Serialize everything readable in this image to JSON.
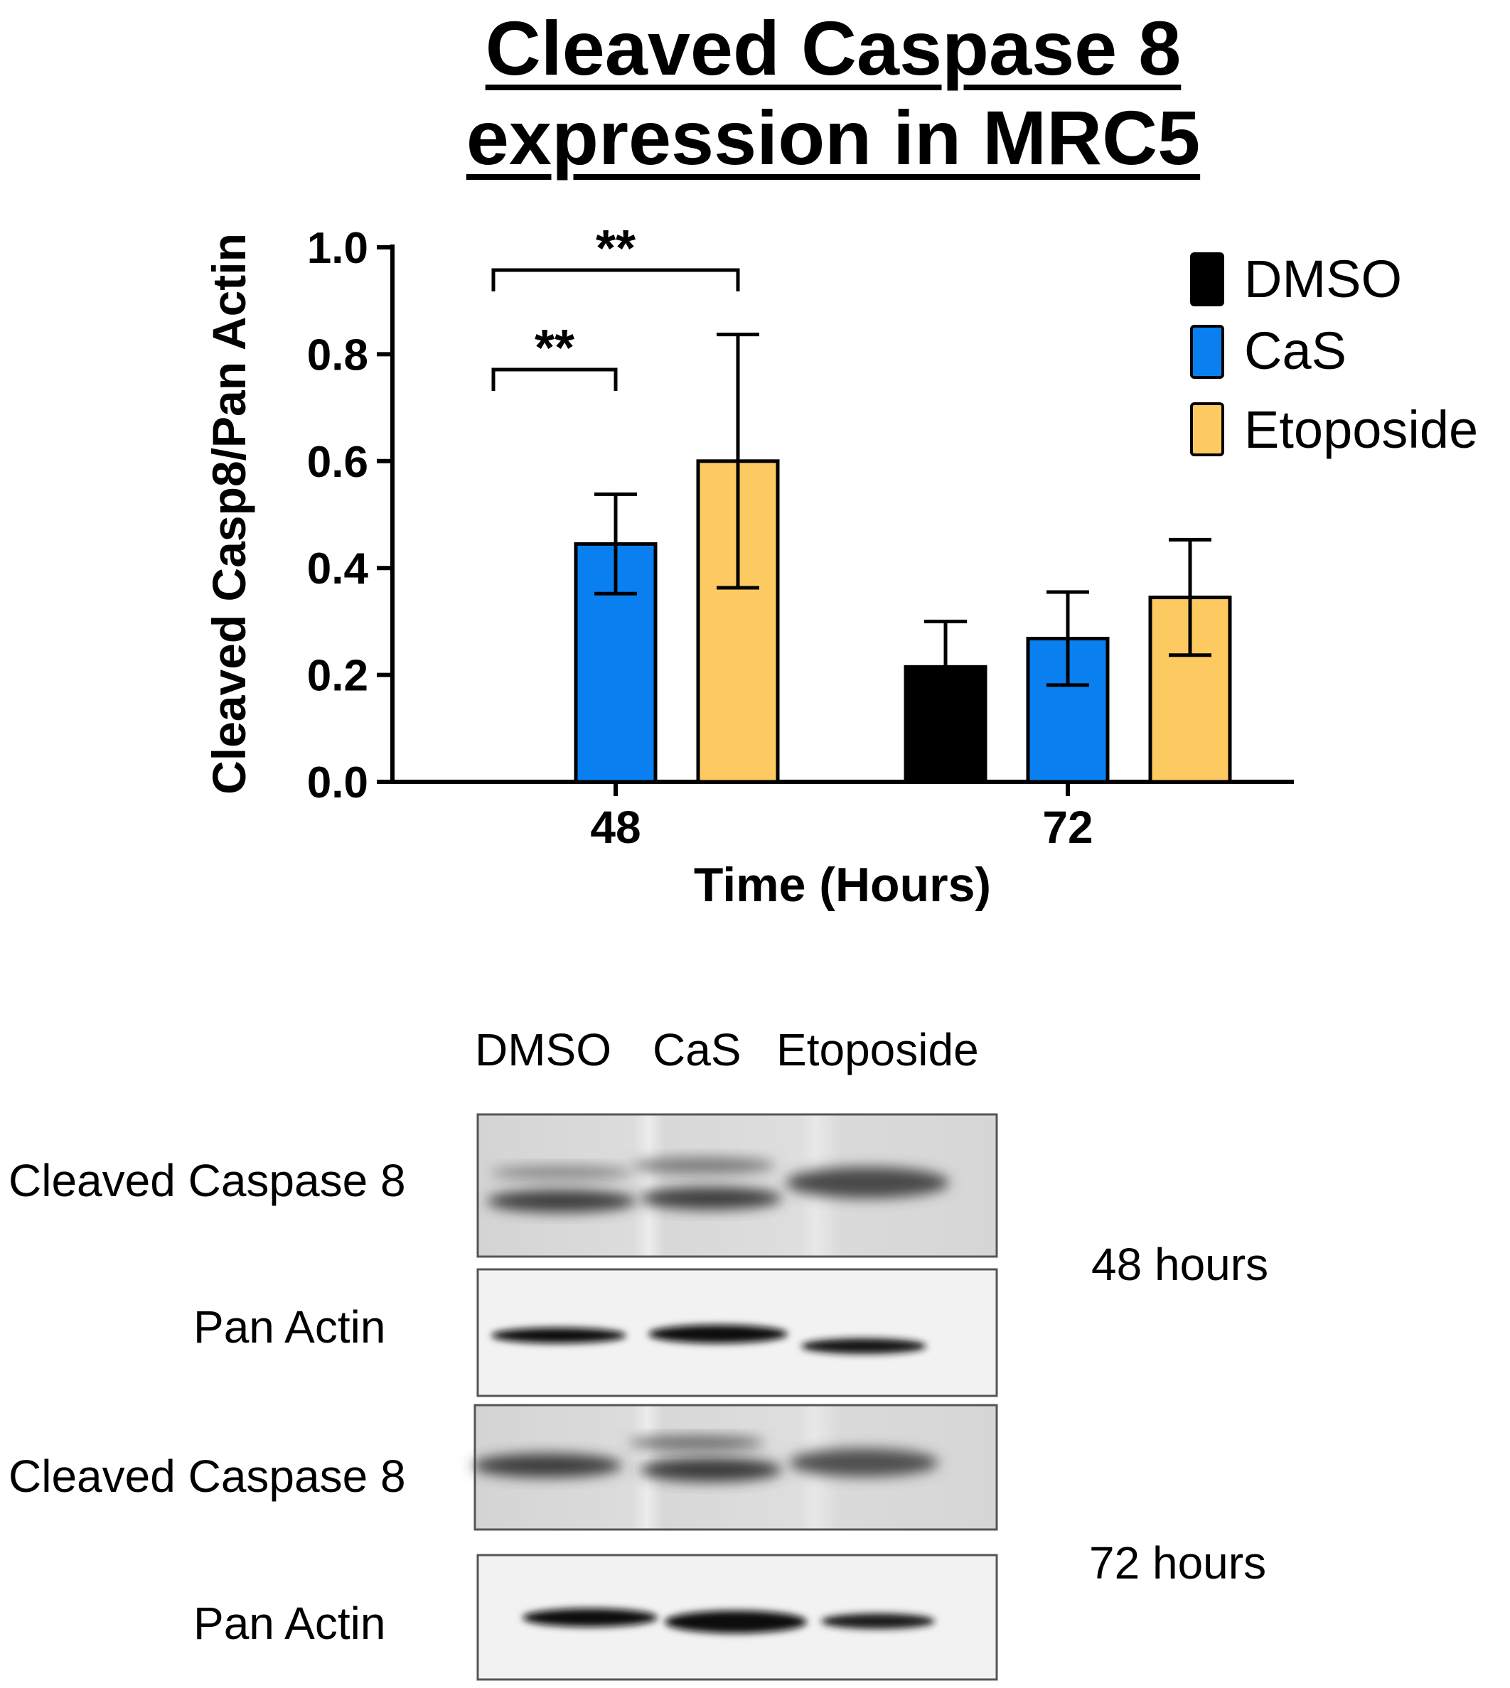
{
  "chart_data": {
    "type": "bar",
    "title_lines": [
      "Cleaved Caspase 8",
      "expression in MRC5"
    ],
    "xlabel": "Time (Hours)",
    "ylabel": "Cleaved Casp8/Pan Actin",
    "categories": [
      "48",
      "72"
    ],
    "ylim": [
      0,
      1.0
    ],
    "yticks": [
      "0.0",
      "0.2",
      "0.4",
      "0.6",
      "0.8",
      "1.0"
    ],
    "legend_position": "top-right",
    "series": [
      {
        "name": "DMSO",
        "color": "#000000",
        "values": [
          0,
          0.215
        ],
        "errors": [
          0,
          0.085
        ]
      },
      {
        "name": "CaS",
        "color": "#0a7ff0",
        "values": [
          0.445,
          0.268
        ],
        "errors": [
          0.093,
          0.087
        ]
      },
      {
        "name": "Etoposide",
        "color": "#fdca62",
        "values": [
          0.6,
          0.345
        ],
        "errors": [
          0.237,
          0.108
        ]
      }
    ],
    "significance": [
      {
        "label": "**",
        "from": "DMSO",
        "to": "CaS",
        "category": "48"
      },
      {
        "label": "**",
        "from": "DMSO",
        "to": "Etoposide",
        "category": "48"
      }
    ]
  },
  "blot": {
    "lanes": [
      "DMSO",
      "CaS",
      "Etoposide"
    ],
    "rows": [
      {
        "label": "Cleaved Caspase 8"
      },
      {
        "label": "Pan Actin"
      },
      {
        "label": "Cleaved Caspase 8"
      },
      {
        "label": "Pan Actin"
      }
    ],
    "time_labels": [
      "48 hours",
      "72 hours"
    ]
  }
}
